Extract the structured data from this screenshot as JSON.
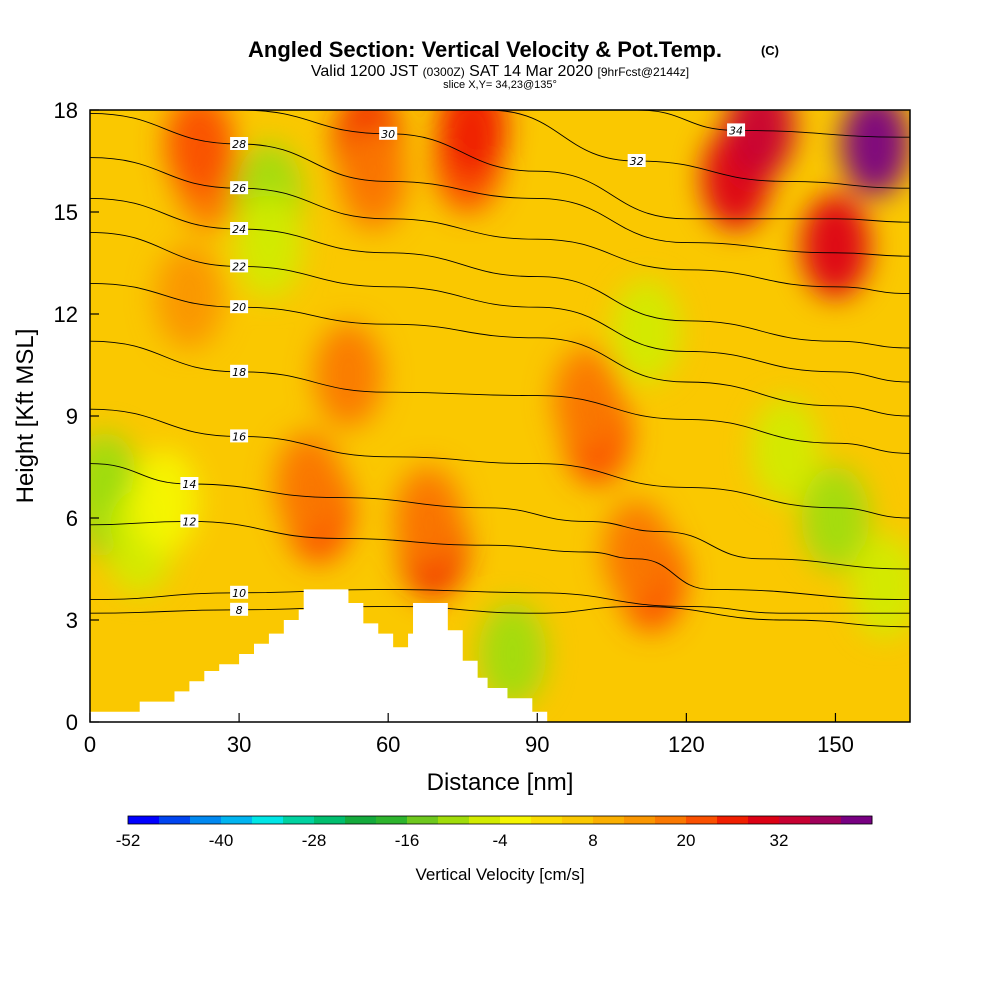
{
  "chart_data": {
    "type": "heatmap",
    "title": "Angled Section: Vertical Velocity & Pot.Temp.",
    "title_suffix": "(C)",
    "subtitle_line1": {
      "a": "Valid 1200 JST",
      "b": "(0300Z)",
      "c": "SAT 14 Mar 2020",
      "d": "[9hrFcst@2144z]"
    },
    "subtitle_line2": "slice X,Y= 34,23@135°",
    "xlabel": "Distance [nm]",
    "ylabel": "Height [Kft MSL]",
    "xlim": [
      0,
      165
    ],
    "ylim": [
      0,
      18
    ],
    "xticks": [
      0,
      30,
      60,
      90,
      120,
      150
    ],
    "yticks": [
      0,
      3,
      6,
      9,
      12,
      15,
      18
    ],
    "colorbar": {
      "label": "Vertical Velocity [cm/s]",
      "tick_labels": [
        "-52",
        "-40",
        "-28",
        "-16",
        "-4",
        "8",
        "20",
        "32"
      ],
      "levels": [
        -52,
        -48,
        -44,
        -40,
        -36,
        -32,
        -28,
        -24,
        -20,
        -16,
        -12,
        -8,
        -4,
        0,
        4,
        8,
        12,
        16,
        20,
        24,
        28,
        32,
        36,
        40
      ],
      "colors": [
        "#0000ff",
        "#0044f0",
        "#0088f0",
        "#00b4f0",
        "#00e6e6",
        "#00d2a0",
        "#00be6e",
        "#14aa3c",
        "#2db42d",
        "#6ec81e",
        "#a0dc0a",
        "#d2eb00",
        "#f5f500",
        "#fadc00",
        "#fac800",
        "#faaf00",
        "#fa9600",
        "#fa7800",
        "#fa5000",
        "#f01e00",
        "#dc0014",
        "#c80032",
        "#a0005a",
        "#780082"
      ]
    },
    "velocity_cells": [
      {
        "x": 5,
        "y": 6.3,
        "v": -16
      },
      {
        "x": 3,
        "y": 7.0,
        "v": -12
      },
      {
        "x": 10,
        "y": 5.3,
        "v": -8
      },
      {
        "x": 15,
        "y": 6.5,
        "v": -4
      },
      {
        "x": 24,
        "y": 16.0,
        "v": 16
      },
      {
        "x": 22,
        "y": 17.0,
        "v": 20
      },
      {
        "x": 20,
        "y": 12.5,
        "v": 12
      },
      {
        "x": 36,
        "y": 15.5,
        "v": -12
      },
      {
        "x": 36,
        "y": 14.0,
        "v": -8
      },
      {
        "x": 46,
        "y": 6.2,
        "v": 20
      },
      {
        "x": 44,
        "y": 7.0,
        "v": 16
      },
      {
        "x": 52,
        "y": 10.2,
        "v": 16
      },
      {
        "x": 56,
        "y": 17.0,
        "v": 24
      },
      {
        "x": 57,
        "y": 16.0,
        "v": 16
      },
      {
        "x": 69,
        "y": 5.2,
        "v": 24
      },
      {
        "x": 68,
        "y": 6.0,
        "v": 16
      },
      {
        "x": 76,
        "y": 16.5,
        "v": 20
      },
      {
        "x": 77,
        "y": 17.5,
        "v": 24
      },
      {
        "x": 85,
        "y": 2.0,
        "v": -12
      },
      {
        "x": 102,
        "y": 8.5,
        "v": 20
      },
      {
        "x": 100,
        "y": 9.5,
        "v": 16
      },
      {
        "x": 113,
        "y": 4.2,
        "v": 20
      },
      {
        "x": 110,
        "y": 5.0,
        "v": 16
      },
      {
        "x": 112,
        "y": 11.5,
        "v": -8
      },
      {
        "x": 140,
        "y": 8.0,
        "v": -8
      },
      {
        "x": 150,
        "y": 6.0,
        "v": -12
      },
      {
        "x": 160,
        "y": 4.0,
        "v": -8
      },
      {
        "x": 130,
        "y": 16.0,
        "v": 28
      },
      {
        "x": 135,
        "y": 17.5,
        "v": 32
      },
      {
        "x": 158,
        "y": 17.0,
        "v": 40
      },
      {
        "x": 150,
        "y": 14.0,
        "v": 28
      }
    ],
    "theta_contours": [
      {
        "label": "8",
        "points": [
          [
            0,
            3.2
          ],
          [
            30,
            3.3
          ],
          [
            60,
            3.4
          ],
          [
            90,
            3.2
          ],
          [
            110,
            3.4
          ],
          [
            140,
            3.0
          ],
          [
            165,
            2.8
          ]
        ]
      },
      {
        "label": "10",
        "points": [
          [
            0,
            3.6
          ],
          [
            30,
            3.8
          ],
          [
            60,
            3.9
          ],
          [
            90,
            3.8
          ],
          [
            120,
            3.4
          ],
          [
            140,
            3.2
          ],
          [
            165,
            3.2
          ]
        ]
      },
      {
        "label": "12",
        "points": [
          [
            0,
            5.8
          ],
          [
            20,
            5.9
          ],
          [
            50,
            5.4
          ],
          [
            80,
            5.2
          ],
          [
            100,
            5.0
          ],
          [
            110,
            4.8
          ],
          [
            125,
            3.9
          ],
          [
            165,
            3.6
          ]
        ]
      },
      {
        "label": "14",
        "points": [
          [
            0,
            7.6
          ],
          [
            20,
            7.0
          ],
          [
            50,
            6.6
          ],
          [
            80,
            6.3
          ],
          [
            100,
            5.9
          ],
          [
            115,
            5.6
          ],
          [
            135,
            4.8
          ],
          [
            165,
            4.5
          ]
        ]
      },
      {
        "label": "16",
        "points": [
          [
            0,
            9.2
          ],
          [
            30,
            8.4
          ],
          [
            60,
            7.8
          ],
          [
            90,
            7.6
          ],
          [
            120,
            6.9
          ],
          [
            150,
            6.3
          ],
          [
            165,
            6.0
          ]
        ]
      },
      {
        "label": "18",
        "points": [
          [
            0,
            11.2
          ],
          [
            30,
            10.3
          ],
          [
            60,
            9.7
          ],
          [
            90,
            9.6
          ],
          [
            120,
            8.9
          ],
          [
            150,
            8.2
          ],
          [
            165,
            7.9
          ]
        ]
      },
      {
        "label": "20",
        "points": [
          [
            0,
            12.9
          ],
          [
            30,
            12.2
          ],
          [
            60,
            11.7
          ],
          [
            90,
            11.3
          ],
          [
            120,
            10.0
          ],
          [
            150,
            9.3
          ],
          [
            165,
            9.0
          ]
        ]
      },
      {
        "label": "22",
        "points": [
          [
            0,
            14.4
          ],
          [
            30,
            13.4
          ],
          [
            60,
            12.8
          ],
          [
            90,
            12.2
          ],
          [
            120,
            10.9
          ],
          [
            150,
            10.3
          ],
          [
            165,
            10.0
          ]
        ]
      },
      {
        "label": "24",
        "points": [
          [
            0,
            15.4
          ],
          [
            30,
            14.5
          ],
          [
            60,
            13.8
          ],
          [
            90,
            13.1
          ],
          [
            120,
            11.8
          ],
          [
            150,
            11.2
          ],
          [
            165,
            11.0
          ]
        ]
      },
      {
        "label": "26",
        "points": [
          [
            0,
            16.6
          ],
          [
            30,
            15.7
          ],
          [
            60,
            14.8
          ],
          [
            90,
            14.2
          ],
          [
            120,
            13.3
          ],
          [
            150,
            12.8
          ],
          [
            165,
            12.6
          ]
        ]
      },
      {
        "label": "28",
        "points": [
          [
            0,
            17.9
          ],
          [
            30,
            17.0
          ],
          [
            60,
            15.9
          ],
          [
            90,
            15.4
          ],
          [
            120,
            14.1
          ],
          [
            150,
            13.8
          ],
          [
            165,
            13.7
          ]
        ]
      },
      {
        "label": "30",
        "points": [
          [
            30,
            18.0
          ],
          [
            60,
            17.3
          ],
          [
            90,
            16.2
          ],
          [
            120,
            14.8
          ],
          [
            150,
            14.8
          ],
          [
            165,
            14.7
          ]
        ]
      },
      {
        "label": "32",
        "points": [
          [
            80,
            18.0
          ],
          [
            110,
            16.5
          ],
          [
            140,
            15.9
          ],
          [
            165,
            15.7
          ]
        ]
      },
      {
        "label": "34",
        "points": [
          [
            110,
            18.0
          ],
          [
            130,
            17.4
          ],
          [
            165,
            17.2
          ]
        ]
      }
    ],
    "terrain": [
      [
        0,
        0.3
      ],
      [
        10,
        0.3
      ],
      [
        10,
        0.6
      ],
      [
        17,
        0.6
      ],
      [
        17,
        0.9
      ],
      [
        20,
        0.9
      ],
      [
        20,
        1.2
      ],
      [
        23,
        1.2
      ],
      [
        23,
        1.5
      ],
      [
        26,
        1.5
      ],
      [
        26,
        1.7
      ],
      [
        30,
        1.7
      ],
      [
        30,
        2.0
      ],
      [
        33,
        2.0
      ],
      [
        33,
        2.3
      ],
      [
        36,
        2.3
      ],
      [
        36,
        2.6
      ],
      [
        39,
        2.6
      ],
      [
        39,
        3.0
      ],
      [
        42,
        3.0
      ],
      [
        42,
        3.3
      ],
      [
        43,
        3.3
      ],
      [
        43,
        3.9
      ],
      [
        52,
        3.9
      ],
      [
        52,
        3.5
      ],
      [
        55,
        3.5
      ],
      [
        55,
        2.9
      ],
      [
        58,
        2.9
      ],
      [
        58,
        2.6
      ],
      [
        61,
        2.6
      ],
      [
        61,
        2.2
      ],
      [
        64,
        2.2
      ],
      [
        64,
        2.6
      ],
      [
        65,
        2.6
      ],
      [
        65,
        3.5
      ],
      [
        72,
        3.5
      ],
      [
        72,
        2.7
      ],
      [
        75,
        2.7
      ],
      [
        75,
        1.8
      ],
      [
        78,
        1.8
      ],
      [
        78,
        1.3
      ],
      [
        80,
        1.3
      ],
      [
        80,
        1.0
      ],
      [
        84,
        1.0
      ],
      [
        84,
        0.7
      ],
      [
        89,
        0.7
      ],
      [
        89,
        0.3
      ],
      [
        92,
        0.3
      ],
      [
        92,
        0
      ],
      [
        0,
        0
      ]
    ]
  }
}
